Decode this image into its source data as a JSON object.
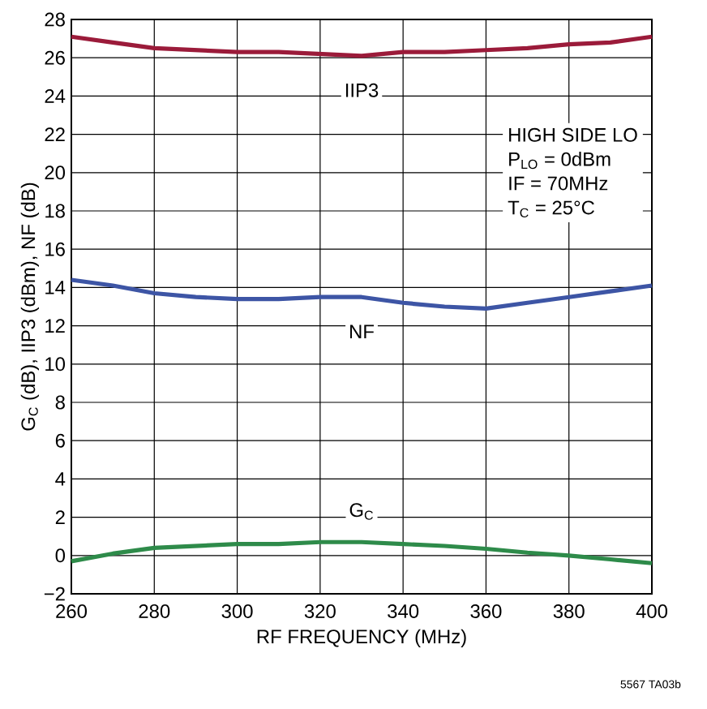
{
  "chart_data": {
    "type": "line",
    "xlabel": "RF FREQUENCY (MHz)",
    "ylabel": "G$_{C}$ (dB), IIP3 (dBm), NF (dB)",
    "x": [
      260,
      270,
      280,
      290,
      300,
      310,
      320,
      330,
      340,
      350,
      360,
      370,
      380,
      390,
      400
    ],
    "series": [
      {
        "name": "IIP3",
        "color": "#9b1b3a",
        "values": [
          27.1,
          26.8,
          26.5,
          26.4,
          26.3,
          26.3,
          26.2,
          26.1,
          26.3,
          26.3,
          26.4,
          26.5,
          26.7,
          26.8,
          27.1
        ]
      },
      {
        "name": "NF",
        "color": "#3d55a5",
        "values": [
          14.4,
          14.1,
          13.7,
          13.5,
          13.4,
          13.4,
          13.5,
          13.5,
          13.2,
          13.0,
          12.9,
          13.2,
          13.5,
          13.8,
          14.1
        ]
      },
      {
        "name": "G$_{C}$",
        "color": "#2e8b4a",
        "values": [
          -0.3,
          0.1,
          0.4,
          0.5,
          0.6,
          0.6,
          0.7,
          0.7,
          0.6,
          0.5,
          0.35,
          0.15,
          0.0,
          -0.2,
          -0.4
        ]
      }
    ],
    "xlim": [
      260,
      400
    ],
    "ylim": [
      -2,
      28
    ],
    "xticks": [
      260,
      280,
      300,
      320,
      340,
      360,
      380,
      400
    ],
    "yticks": [
      {
        "value": -2,
        "label": "−2"
      },
      0,
      2,
      4,
      6,
      8,
      10,
      12,
      14,
      16,
      18,
      20,
      22,
      24,
      26,
      28
    ],
    "grid": true,
    "marker": "none",
    "line_style": "solid",
    "annotations": [
      "HIGH SIDE LO",
      "P$_{LO}$ = 0dBm",
      "IF = 70MHz",
      "T$_{C}$ = 25°C",
      "5567 TA03b"
    ]
  }
}
